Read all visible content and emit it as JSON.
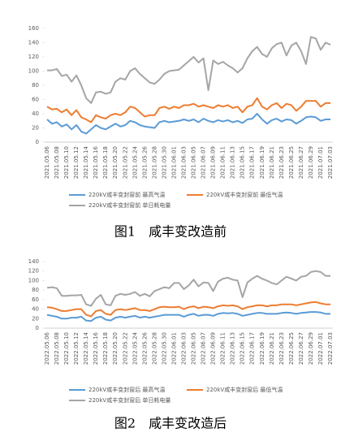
{
  "chart_data": [
    {
      "type": "line",
      "caption": "图1　咸丰变改造前",
      "categories": [
        "2021.05.06",
        null,
        "2021.05.08",
        null,
        "2021.05.10",
        null,
        "2021.05.12",
        null,
        "2021.05.14",
        null,
        "2021.05.16",
        null,
        "2021.05.18",
        null,
        "2021.05.20",
        null,
        "2021.05.22",
        null,
        "2021.05.24",
        null,
        "2021.05.26",
        null,
        "2021.05.28",
        null,
        "2021.05.30",
        null,
        "2021.06.01",
        null,
        "2021.06.03",
        null,
        "2021.06.05",
        null,
        "2021.06.07",
        null,
        "2021.06.09",
        null,
        "2021.06.11",
        null,
        "2021.06.13",
        null,
        "2021.06.15",
        null,
        "2021.06.17",
        null,
        "2021.06.19",
        null,
        "2021.06.21",
        null,
        "2021.06.23",
        null,
        "2021.06.25",
        null,
        "2021.06.27",
        null,
        "2021.06.29",
        null,
        "2021.07.01",
        null,
        "2021.07.03"
      ],
      "series": [
        {
          "name": "220kV咸丰变封窗前 最高气温",
          "color": "#5b9bd5",
          "values": [
            32,
            26,
            28,
            22,
            25,
            18,
            24,
            15,
            12,
            18,
            24,
            20,
            18,
            22,
            26,
            22,
            24,
            30,
            28,
            24,
            22,
            21,
            20,
            28,
            30,
            28,
            29,
            30,
            32,
            30,
            32,
            28,
            33,
            30,
            28,
            31,
            29,
            31,
            28,
            30,
            27,
            32,
            33,
            40,
            32,
            26,
            31,
            33,
            29,
            32,
            31,
            26,
            30,
            35,
            36,
            35,
            30,
            32,
            32
          ]
        },
        {
          "name": "220kV咸丰变封窗前 最低气温",
          "color": "#ed7d31",
          "values": [
            50,
            46,
            47,
            42,
            46,
            38,
            45,
            35,
            32,
            28,
            38,
            35,
            33,
            38,
            40,
            38,
            42,
            50,
            48,
            42,
            36,
            38,
            38,
            48,
            50,
            47,
            50,
            48,
            52,
            52,
            54,
            50,
            52,
            50,
            48,
            52,
            50,
            52,
            48,
            50,
            42,
            50,
            52,
            62,
            50,
            46,
            52,
            55,
            48,
            54,
            52,
            44,
            50,
            58,
            58,
            58,
            50,
            55,
            55
          ]
        },
        {
          "name": "220kV咸丰变封窗前 单日耗电量",
          "color": "#a5a5a5",
          "values": [
            101,
            101,
            103,
            93,
            95,
            85,
            94,
            80,
            62,
            55,
            70,
            71,
            68,
            70,
            85,
            90,
            88,
            100,
            104,
            96,
            90,
            84,
            82,
            88,
            96,
            100,
            101,
            102,
            108,
            114,
            120,
            112,
            118,
            73,
            115,
            110,
            113,
            108,
            104,
            98,
            104,
            118,
            128,
            134,
            124,
            120,
            132,
            138,
            140,
            122,
            136,
            140,
            128,
            110,
            148,
            146,
            130,
            140,
            137
          ]
        }
      ],
      "ylim": [
        0,
        160
      ],
      "yticks": [
        0,
        20,
        40,
        60,
        80,
        100,
        120,
        140,
        160
      ],
      "grid": false
    },
    {
      "type": "line",
      "caption": "图2　咸丰变改造后",
      "categories": [
        "2022.05.06",
        null,
        "2022.05.08",
        null,
        "2022.05.10",
        null,
        "2022.05.12",
        null,
        "2022.05.14",
        null,
        "2022.05.16",
        null,
        "2022.05.18",
        null,
        "2022.05.20",
        null,
        "2022.05.22",
        null,
        "2022.05.24",
        null,
        "2022.05.26",
        null,
        "2022.05.28",
        null,
        "2022.05.30",
        null,
        "2022.06.01",
        null,
        "2022.06.03",
        null,
        "2022.06.05",
        null,
        "2022.06.07",
        null,
        "2022.06.09",
        null,
        "2022.06.11",
        null,
        "2022.06.13",
        null,
        "2022.06.15",
        null,
        "2022.06.17",
        null,
        "2022.06.19",
        null,
        "2022.06.21",
        null,
        "2022.06.23",
        null,
        "2022.06.25",
        null,
        "2022.06.27",
        null,
        "2022.06.29",
        null,
        "2022.07.01",
        null,
        "2022.07.03"
      ],
      "series": [
        {
          "name": "220kV咸丰变封窗后 最高气温",
          "color": "#5b9bd5",
          "values": [
            28,
            26,
            24,
            20,
            20,
            22,
            22,
            24,
            16,
            15,
            22,
            24,
            18,
            16,
            22,
            24,
            22,
            24,
            26,
            22,
            24,
            22,
            24,
            26,
            28,
            28,
            28,
            28,
            24,
            28,
            30,
            26,
            28,
            28,
            26,
            30,
            32,
            31,
            32,
            30,
            26,
            28,
            30,
            32,
            32,
            30,
            30,
            30,
            32,
            33,
            32,
            30,
            32,
            33,
            34,
            34,
            33,
            30,
            30
          ]
        },
        {
          "name": "220kV咸丰变封窗后 最低气温",
          "color": "#ed7d31",
          "values": [
            44,
            43,
            40,
            36,
            36,
            38,
            40,
            40,
            28,
            25,
            36,
            38,
            30,
            28,
            38,
            40,
            38,
            40,
            42,
            38,
            38,
            36,
            40,
            44,
            45,
            44,
            44,
            45,
            40,
            44,
            46,
            42,
            45,
            44,
            42,
            46,
            48,
            47,
            48,
            46,
            40,
            44,
            46,
            48,
            48,
            46,
            48,
            48,
            50,
            50,
            50,
            48,
            50,
            52,
            54,
            55,
            52,
            50,
            50
          ]
        },
        {
          "name": "220kV咸丰变封窗后 单日耗电量",
          "color": "#a5a5a5",
          "values": [
            85,
            86,
            84,
            68,
            68,
            69,
            69,
            70,
            50,
            47,
            62,
            70,
            50,
            48,
            68,
            72,
            70,
            72,
            76,
            68,
            72,
            67,
            78,
            82,
            86,
            84,
            95,
            95,
            82,
            90,
            102,
            88,
            96,
            95,
            78,
            98,
            104,
            106,
            102,
            100,
            65,
            96,
            104,
            110,
            104,
            100,
            95,
            92,
            100,
            108,
            104,
            100,
            108,
            110,
            118,
            120,
            118,
            110,
            110
          ]
        }
      ],
      "ylim": [
        0,
        140
      ],
      "yticks": [
        0,
        20,
        40,
        60,
        80,
        100,
        120,
        140
      ],
      "grid": false
    }
  ]
}
